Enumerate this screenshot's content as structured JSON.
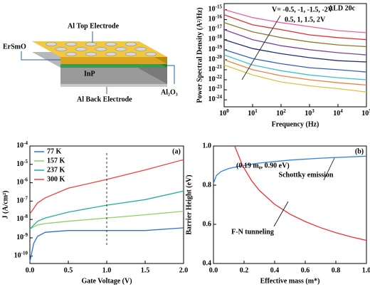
{
  "diagram": {
    "labels": [
      "ErSmO",
      "Al Top Electrode",
      "InP",
      "Al Back Electrode",
      "Al₂O₃"
    ]
  },
  "chart_data": [
    {
      "type": "line",
      "log_x": true,
      "log_y": true,
      "x": [
        1,
        10,
        100,
        1000,
        10000,
        100000
      ],
      "xlim": [
        1,
        100000
      ],
      "xticks": [
        {
          "value": 1,
          "label": "100"
        },
        {
          "value": 10,
          "label": "101"
        },
        {
          "value": 100,
          "label": "102"
        },
        {
          "value": 1000,
          "label": "103"
        },
        {
          "value": 10000,
          "label": "104"
        },
        {
          "value": 100000,
          "label": "105"
        }
      ],
      "ylim": [
        2e-25,
        4e-15
      ],
      "yticks": [
        {
          "value": 1e-15,
          "label": "10-15"
        },
        {
          "value": 1e-16,
          "label": "10-16"
        },
        {
          "value": 1e-17,
          "label": "10-17"
        },
        {
          "value": 1e-18,
          "label": "10-18"
        },
        {
          "value": 1e-19,
          "label": "10-19"
        },
        {
          "value": 1e-20,
          "label": "10-20"
        },
        {
          "value": 1e-21,
          "label": "10-21"
        },
        {
          "value": 1e-22,
          "label": "10-22"
        },
        {
          "value": 1e-23,
          "label": "10-23"
        },
        {
          "value": 1e-24,
          "label": "10-24"
        }
      ],
      "xlabel": "Frequency (Hz)",
      "ylabel": "Power Spectral Density (A²/Hz)",
      "annotations": [
        "ALD 20c",
        "V= -0.5, -1, -1.5, -2V",
        "0.5, 1, 1.5, 2V"
      ],
      "series": [
        {
          "color": "#f060a0",
          "values": [
            1e-15,
            1.6e-16,
            5e-17,
            2e-17,
            8e-18,
            5e-18
          ]
        },
        {
          "color": "#e03030",
          "values": [
            3e-16,
            3e-17,
            1e-17,
            3e-18,
            1.6e-18,
            1e-18
          ]
        },
        {
          "color": "#8a7a30",
          "values": [
            5e-17,
            6e-18,
            1.6e-18,
            6e-19,
            3e-19,
            2e-19
          ]
        },
        {
          "color": "#8040a0",
          "values": [
            1e-17,
            1e-18,
            2.5e-19,
            1e-19,
            5e-20,
            3e-20
          ]
        },
        {
          "color": "#203070",
          "values": [
            1e-18,
            1.3e-19,
            4e-20,
            1.6e-20,
            8e-21,
            6e-21
          ]
        },
        {
          "color": "#3060c0",
          "values": [
            1e-19,
            1.3e-20,
            4e-21,
            1.6e-21,
            1e-21,
            6e-22
          ]
        },
        {
          "color": "#40c0d0",
          "values": [
            3e-20,
            3e-21,
            8e-22,
            3e-22,
            1.6e-22,
            1e-22
          ]
        },
        {
          "color": "#f08040",
          "values": [
            1e-20,
            1e-21,
            2.5e-22,
            1e-22,
            5e-23,
            3e-23
          ]
        },
        {
          "color": "#e0c040",
          "values": [
            3e-21,
            3e-22,
            6e-23,
            2.5e-23,
            1.3e-23,
            6e-24
          ]
        }
      ]
    },
    {
      "type": "line",
      "log_y": true,
      "xlim": [
        0,
        2
      ],
      "xticks": [
        {
          "value": 0,
          "label": "0.0"
        },
        0.5,
        {
          "value": 1,
          "label": "1.0"
        },
        1.5,
        {
          "value": 2,
          "label": "2.0"
        }
      ],
      "ylim": [
        4e-11,
        0.0001
      ],
      "yticks": [
        {
          "value": 1e-10,
          "label": "10-10"
        },
        {
          "value": 1e-09,
          "label": "10-9"
        },
        {
          "value": 1e-08,
          "label": "10-8"
        },
        {
          "value": 1e-07,
          "label": "10-7"
        },
        {
          "value": 1e-06,
          "label": "10-6"
        },
        {
          "value": 1e-05,
          "label": "10-5"
        },
        {
          "value": 0.0001,
          "label": "10-4"
        }
      ],
      "xlabel": "Gate Voltage (V)",
      "ylabel": "J (A/cm²)",
      "panel_label": "(a)",
      "legend": "upper left",
      "x": [
        0,
        0.05,
        0.1,
        0.2,
        0.5,
        1,
        1.5,
        2
      ],
      "series": [
        {
          "name": "77 K",
          "color": "#3070d0",
          "values": [
            5e-11,
            5e-10,
            1.2e-09,
            2e-09,
            2.5e-09,
            2.5e-09,
            2.5e-09,
            3.5e-09
          ]
        },
        {
          "name": "157 K",
          "color": "#90d060",
          "values": [
            3e-09,
            4e-09,
            5e-09,
            6e-09,
            8e-09,
            1.2e-08,
            1.8e-08,
            2.8e-08
          ]
        },
        {
          "name": "237 K",
          "color": "#20b0a0",
          "values": [
            3e-09,
            5e-09,
            8e-09,
            1.2e-08,
            2.5e-08,
            6e-08,
            1.2e-07,
            3.5e-07
          ]
        },
        {
          "name": "300 K",
          "color": "#f04040",
          "values": [
            2e-08,
            4e-08,
            8e-08,
            1.5e-07,
            5e-07,
            1.5e-06,
            5e-06,
            1.8e-05
          ]
        }
      ]
    },
    {
      "type": "line",
      "xlim": [
        0,
        1
      ],
      "xticks": [
        {
          "value": 0,
          "label": "0.0"
        },
        0.2,
        0.4,
        0.6,
        0.8,
        {
          "value": 1,
          "label": "1.0"
        }
      ],
      "ylim": [
        0.4,
        1
      ],
      "yticks": [
        0.4,
        0.6,
        0.8,
        {
          "value": 1,
          "label": "1.0"
        }
      ],
      "xlabel": "Effective mass (m*)",
      "ylabel": "Barrier Height (eV)",
      "panel_label": "(b)",
      "annotations": [
        "(0.19 m₀, 0.90 eV)"
      ],
      "series": [
        {
          "name": "Schottky emission",
          "color": "#3080e0",
          "x": [
            0,
            0.02,
            0.05,
            0.1,
            0.19,
            0.3,
            0.5,
            0.7,
            1
          ],
          "values": [
            0.81,
            0.85,
            0.87,
            0.885,
            0.9,
            0.913,
            0.928,
            0.938,
            0.948
          ]
        },
        {
          "name": "F-N tunneling",
          "color": "#f03030",
          "x": [
            0.14,
            0.19,
            0.25,
            0.3,
            0.4,
            0.5,
            0.6,
            0.7,
            0.8,
            0.9,
            1
          ],
          "values": [
            0.997,
            0.9,
            0.822,
            0.773,
            0.702,
            0.652,
            0.614,
            0.583,
            0.557,
            0.536,
            0.518
          ]
        }
      ]
    }
  ]
}
